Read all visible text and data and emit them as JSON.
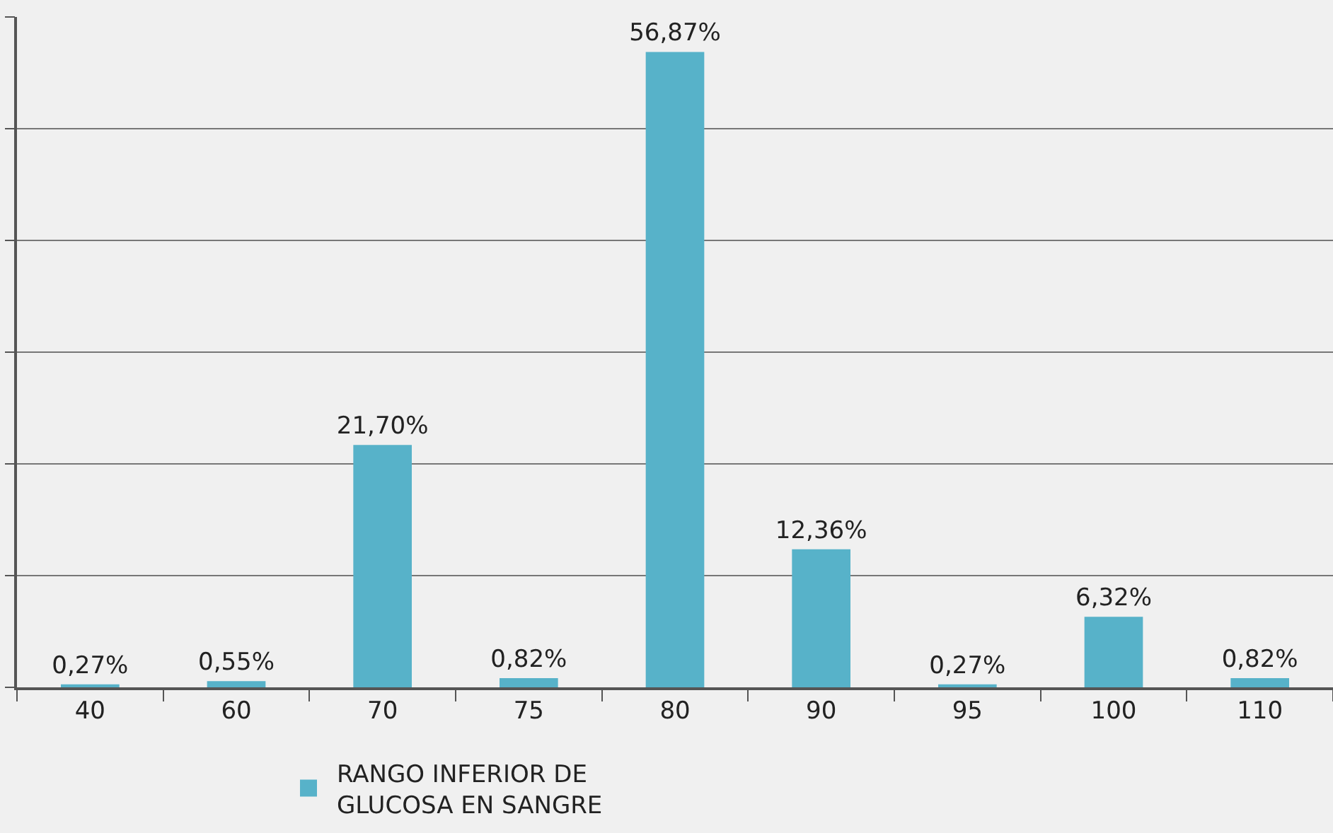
{
  "chart_data": {
    "type": "bar",
    "categories": [
      "40",
      "60",
      "70",
      "75",
      "80",
      "90",
      "95",
      "100",
      "110"
    ],
    "series": [
      {
        "name": "RANGO INFERIOR DE\nGLUCOSA EN SANGRE",
        "color": "#57b2c9",
        "values": [
          0.27,
          0.55,
          21.7,
          0.82,
          56.87,
          12.36,
          0.27,
          6.32,
          0.82
        ],
        "value_labels": [
          "0,27%",
          "0,55%",
          "21,70%",
          "0,82%",
          "56,87%",
          "12,36%",
          "0,27%",
          "6,32%",
          "0,82%"
        ]
      }
    ],
    "ylim": [
      0,
      60
    ],
    "yticks": [
      {
        "value": 0,
        "label": null
      },
      {
        "value": 10,
        "label": null
      },
      {
        "value": 20,
        "label": null
      },
      {
        "value": 30,
        "label": null
      },
      {
        "value": 40,
        "label": null
      },
      {
        "value": 50,
        "label": null
      },
      {
        "value": 60,
        "label": null
      }
    ],
    "grid": "y",
    "legend": "bottom",
    "tick_labels": "x"
  }
}
